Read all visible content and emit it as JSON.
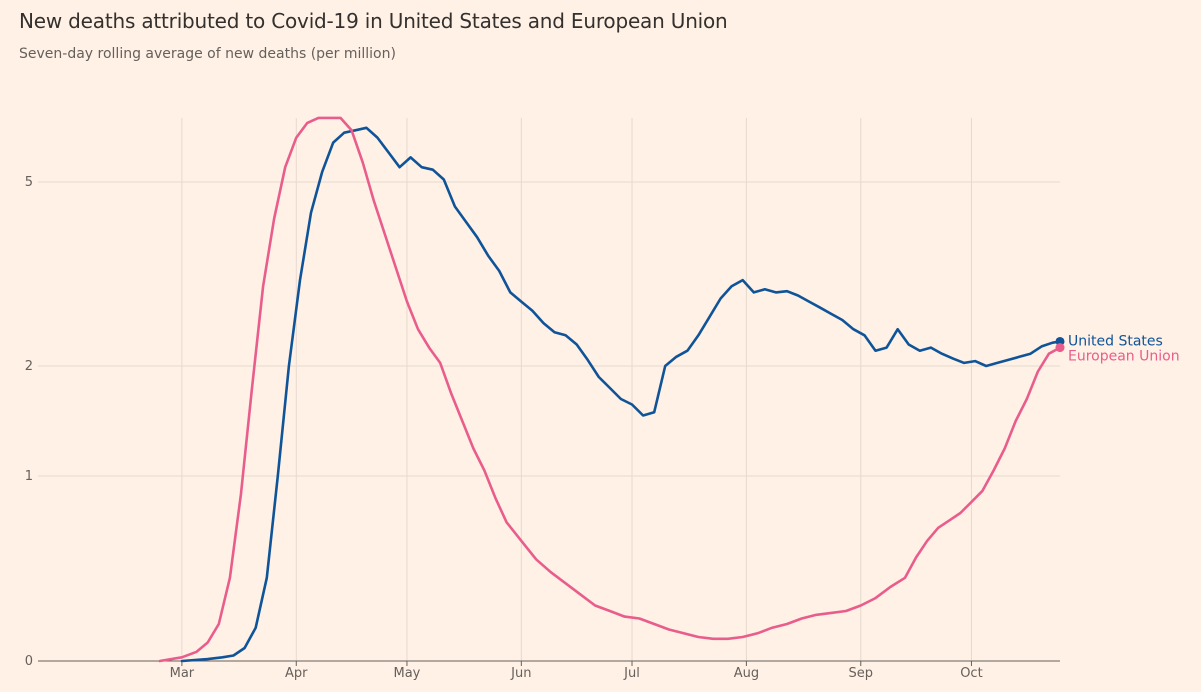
{
  "title": "New deaths attributed to Covid-19 in United States and European Union",
  "subtitle": "Seven-day rolling average of new deaths (per million)",
  "chart_data": {
    "type": "line",
    "title": "New deaths attributed to Covid-19 in United States and European Union",
    "subtitle": "Seven-day rolling average of new deaths (per million)",
    "xlabel": "",
    "ylabel": "",
    "y_scale": "non-linear (symmetric log-like)",
    "y_ticks": [
      0,
      1,
      2,
      5
    ],
    "x_ticks": [
      "Mar",
      "Apr",
      "May",
      "Jun",
      "Jul",
      "Aug",
      "Sep",
      "Oct"
    ],
    "x_tick_dates": [
      "2020-03-01",
      "2020-04-01",
      "2020-05-01",
      "2020-06-01",
      "2020-07-01",
      "2020-08-01",
      "2020-09-01",
      "2020-10-01"
    ],
    "xlim": [
      "2020-01-22",
      "2020-10-25"
    ],
    "grid": true,
    "legend": "direct labels at line ends (right)",
    "series": [
      {
        "name": "United States",
        "color": "#0f5499",
        "x": [
          "2020-03-01",
          "2020-03-08",
          "2020-03-12",
          "2020-03-15",
          "2020-03-18",
          "2020-03-21",
          "2020-03-24",
          "2020-03-27",
          "2020-03-30",
          "2020-04-02",
          "2020-04-05",
          "2020-04-08",
          "2020-04-11",
          "2020-04-14",
          "2020-04-17",
          "2020-04-20",
          "2020-04-23",
          "2020-04-26",
          "2020-04-29",
          "2020-05-02",
          "2020-05-05",
          "2020-05-08",
          "2020-05-11",
          "2020-05-14",
          "2020-05-17",
          "2020-05-20",
          "2020-05-23",
          "2020-05-26",
          "2020-05-29",
          "2020-06-01",
          "2020-06-04",
          "2020-06-07",
          "2020-06-10",
          "2020-06-13",
          "2020-06-16",
          "2020-06-19",
          "2020-06-22",
          "2020-06-25",
          "2020-06-28",
          "2020-07-01",
          "2020-07-04",
          "2020-07-07",
          "2020-07-10",
          "2020-07-13",
          "2020-07-16",
          "2020-07-19",
          "2020-07-22",
          "2020-07-25",
          "2020-07-28",
          "2020-07-31",
          "2020-08-03",
          "2020-08-06",
          "2020-08-09",
          "2020-08-12",
          "2020-08-15",
          "2020-08-18",
          "2020-08-21",
          "2020-08-24",
          "2020-08-27",
          "2020-08-30",
          "2020-09-02",
          "2020-09-05",
          "2020-09-08",
          "2020-09-11",
          "2020-09-14",
          "2020-09-17",
          "2020-09-20",
          "2020-09-23",
          "2020-09-26",
          "2020-09-29",
          "2020-10-02",
          "2020-10-05",
          "2020-10-08",
          "2020-10-11",
          "2020-10-14",
          "2020-10-17",
          "2020-10-20",
          "2020-10-23",
          "2020-10-25"
        ],
        "y": [
          0.0,
          0.01,
          0.02,
          0.03,
          0.07,
          0.18,
          0.45,
          1.0,
          2.0,
          3.4,
          4.5,
          5.2,
          5.8,
          6.0,
          6.05,
          6.1,
          5.9,
          5.6,
          5.3,
          5.5,
          5.3,
          5.25,
          5.05,
          4.6,
          4.35,
          4.1,
          3.8,
          3.55,
          3.2,
          3.05,
          2.9,
          2.7,
          2.55,
          2.5,
          2.35,
          2.1,
          1.9,
          1.8,
          1.7,
          1.65,
          1.55,
          1.58,
          2.0,
          2.15,
          2.25,
          2.5,
          2.8,
          3.1,
          3.3,
          3.4,
          3.2,
          3.25,
          3.2,
          3.22,
          3.15,
          3.05,
          2.95,
          2.85,
          2.75,
          2.6,
          2.5,
          2.25,
          2.3,
          2.6,
          2.35,
          2.25,
          2.3,
          2.2,
          2.12,
          2.05,
          2.08,
          2.0,
          2.05,
          2.1,
          2.15,
          2.2,
          2.32,
          2.38,
          2.4
        ]
      },
      {
        "name": "European Union",
        "color": "#e95d8c",
        "x": [
          "2020-02-24",
          "2020-03-01",
          "2020-03-05",
          "2020-03-08",
          "2020-03-11",
          "2020-03-14",
          "2020-03-17",
          "2020-03-20",
          "2020-03-23",
          "2020-03-26",
          "2020-03-29",
          "2020-04-01",
          "2020-04-04",
          "2020-04-07",
          "2020-04-10",
          "2020-04-13",
          "2020-04-16",
          "2020-04-19",
          "2020-04-22",
          "2020-04-25",
          "2020-04-28",
          "2020-05-01",
          "2020-05-04",
          "2020-05-07",
          "2020-05-10",
          "2020-05-13",
          "2020-05-16",
          "2020-05-19",
          "2020-05-22",
          "2020-05-25",
          "2020-05-28",
          "2020-06-01",
          "2020-06-05",
          "2020-06-09",
          "2020-06-13",
          "2020-06-17",
          "2020-06-21",
          "2020-06-25",
          "2020-06-29",
          "2020-07-03",
          "2020-07-07",
          "2020-07-11",
          "2020-07-15",
          "2020-07-19",
          "2020-07-23",
          "2020-07-27",
          "2020-07-31",
          "2020-08-04",
          "2020-08-08",
          "2020-08-12",
          "2020-08-16",
          "2020-08-20",
          "2020-08-24",
          "2020-08-28",
          "2020-09-01",
          "2020-09-05",
          "2020-09-09",
          "2020-09-13",
          "2020-09-16",
          "2020-09-19",
          "2020-09-22",
          "2020-09-25",
          "2020-09-28",
          "2020-10-01",
          "2020-10-04",
          "2020-10-07",
          "2020-10-10",
          "2020-10-13",
          "2020-10-16",
          "2020-10-19",
          "2020-10-22",
          "2020-10-25"
        ],
        "y": [
          0.0,
          0.02,
          0.05,
          0.1,
          0.2,
          0.45,
          0.9,
          1.8,
          3.3,
          4.4,
          5.3,
          5.9,
          6.2,
          6.3,
          6.3,
          6.3,
          6.05,
          5.4,
          4.7,
          4.15,
          3.6,
          3.05,
          2.6,
          2.3,
          2.05,
          1.75,
          1.5,
          1.25,
          1.05,
          0.88,
          0.75,
          0.65,
          0.55,
          0.48,
          0.42,
          0.36,
          0.3,
          0.27,
          0.24,
          0.23,
          0.2,
          0.17,
          0.15,
          0.13,
          0.12,
          0.12,
          0.13,
          0.15,
          0.18,
          0.2,
          0.23,
          0.25,
          0.26,
          0.27,
          0.3,
          0.34,
          0.4,
          0.45,
          0.56,
          0.65,
          0.72,
          0.76,
          0.8,
          0.86,
          0.92,
          1.05,
          1.25,
          1.5,
          1.7,
          1.95,
          2.2,
          2.3
        ]
      }
    ]
  }
}
